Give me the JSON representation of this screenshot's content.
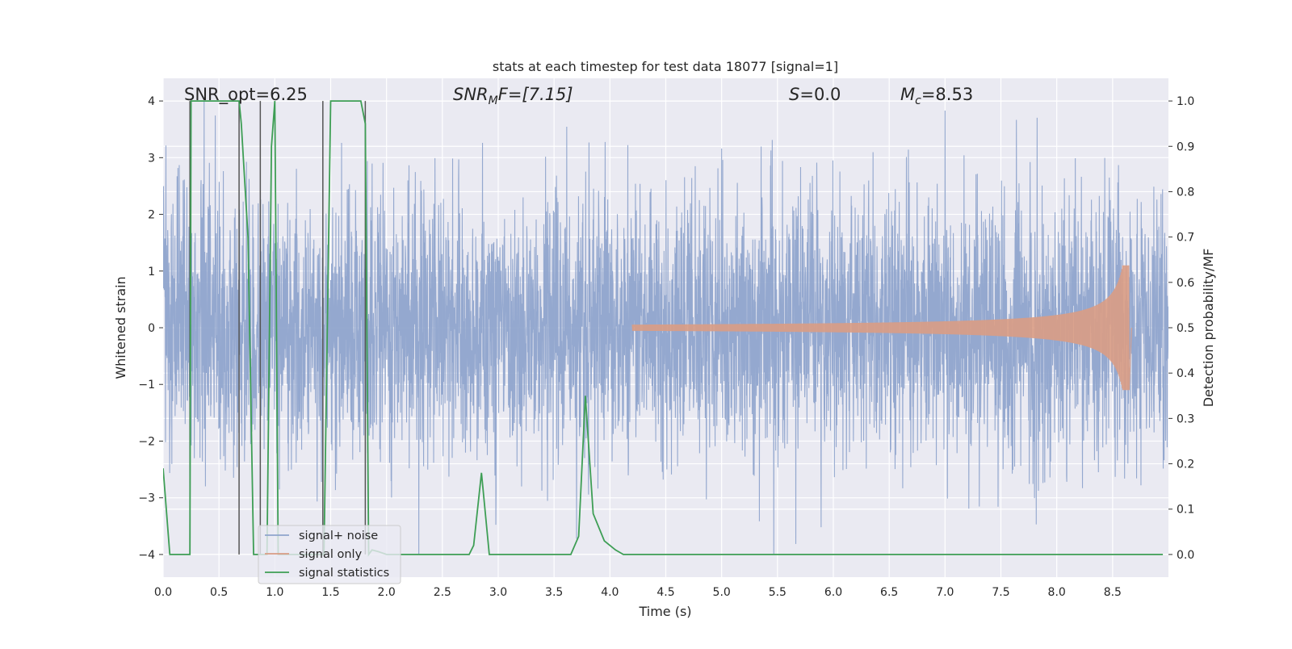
{
  "chart_data": {
    "type": "line",
    "title": "stats at each timestep for test data 18077 [signal=1]",
    "xlabel": "Time (s)",
    "ylabel_left": "Whitened strain",
    "ylabel_right": "Detection probability/MF",
    "xlim": [
      0.0,
      9.0
    ],
    "ylim_left": [
      -4.4,
      4.4
    ],
    "ylim_right": [
      -0.05,
      1.05
    ],
    "grid": true,
    "x_ticks": [
      0.0,
      0.5,
      1.0,
      1.5,
      2.0,
      2.5,
      3.0,
      3.5,
      4.0,
      4.5,
      5.0,
      5.5,
      6.0,
      6.5,
      7.0,
      7.5,
      8.0,
      8.5
    ],
    "x_tick_labels": [
      "0.0",
      "0.5",
      "1.0",
      "1.5",
      "2.0",
      "2.5",
      "3.0",
      "3.5",
      "4.0",
      "4.5",
      "5.0",
      "5.5",
      "6.0",
      "6.5",
      "7.0",
      "7.5",
      "8.0",
      "8.5"
    ],
    "y_left_ticks": [
      -4,
      -3,
      -2,
      -1,
      0,
      1,
      2,
      3,
      4
    ],
    "y_left_tick_labels": [
      "−4",
      "−3",
      "−2",
      "−1",
      "0",
      "1",
      "2",
      "3",
      "4"
    ],
    "y_right_ticks": [
      0.0,
      0.1,
      0.2,
      0.3,
      0.4,
      0.5,
      0.6,
      0.7,
      0.8,
      0.9,
      1.0
    ],
    "y_right_tick_labels": [
      "0.0",
      "0.1",
      "0.2",
      "0.3",
      "0.4",
      "0.5",
      "0.6",
      "0.7",
      "0.8",
      "0.9",
      "1.0"
    ],
    "annotations": {
      "snr_opt": "SNR_opt=6.25",
      "snr_mf_var": "SNR",
      "snr_mf_sub": "M",
      "snr_mf_rest": "F=[7.15]",
      "s_var": "S",
      "s_rest": "=0.0",
      "mc_var": "M",
      "mc_sub": "c",
      "mc_rest": "=8.53"
    },
    "legend": {
      "location": "lower-left",
      "entries": [
        "signal+ noise",
        "signal only",
        "signal statistics"
      ]
    },
    "colors": {
      "noise": "#8fa4cc",
      "signal": "#d99c84",
      "stats": "#3e9e55",
      "vlines": "#555555",
      "background": "#eaeaf2",
      "grid": "#ffffff"
    },
    "noise": {
      "duration_s": 9.0,
      "sample_rate_hz": 512,
      "typical_abs": 1.6,
      "max_abs": 4.0
    },
    "chirp": {
      "start_s": 4.2,
      "end_s": 8.65,
      "peak_amplitude": 1.1,
      "amplitude_at_6s": 0.08
    },
    "detection_vlines": [
      0.24,
      0.68,
      0.87,
      1.43,
      1.81
    ],
    "signal_statistics": {
      "x": [
        0.0,
        0.06,
        0.24,
        0.25,
        0.3,
        0.5,
        0.68,
        0.7,
        0.76,
        0.81,
        0.87,
        0.93,
        0.97,
        1.0,
        1.03,
        1.43,
        1.44,
        1.5,
        1.77,
        1.81,
        1.84,
        1.87,
        1.93,
        2.0,
        2.74,
        2.78,
        2.85,
        2.92,
        3.4,
        3.5,
        3.65,
        3.72,
        3.78,
        3.85,
        3.95,
        4.0,
        4.05,
        4.12,
        8.95
      ],
      "y": [
        0.19,
        0.0,
        0.0,
        1.0,
        1.0,
        1.0,
        1.0,
        0.95,
        0.7,
        0.0,
        0.0,
        0.0,
        0.9,
        1.0,
        0.0,
        0.0,
        0.0,
        1.0,
        1.0,
        0.95,
        0.0,
        0.01,
        0.006,
        0.0,
        0.0,
        0.02,
        0.18,
        0.0,
        0.0,
        0.0,
        0.0,
        0.04,
        0.35,
        0.09,
        0.03,
        0.02,
        0.01,
        0.0,
        0.0
      ]
    }
  }
}
